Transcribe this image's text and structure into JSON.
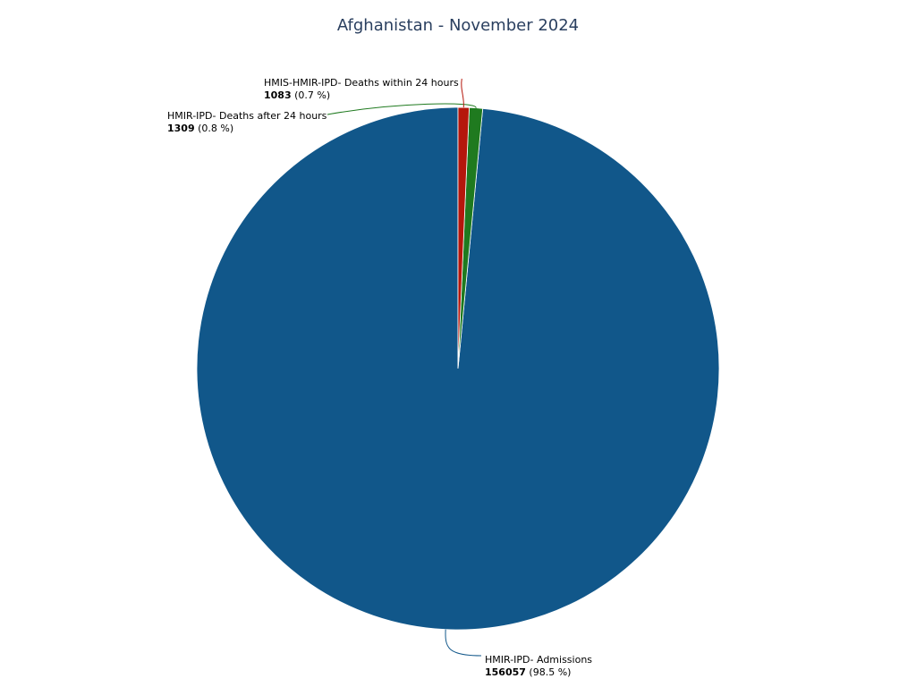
{
  "chart_data": {
    "type": "pie",
    "title": "Afghanistan - November 2024",
    "slices": [
      {
        "label": "HMIR-IPD- Admissions",
        "value": 156057,
        "percent_text": "(98.5 %)",
        "color": "#11578a"
      },
      {
        "label": "HMIR-IPD- Deaths after 24 hours",
        "value": 1309,
        "percent_text": "(0.8 %)",
        "color": "#1f7a1f"
      },
      {
        "label": "HMIS-HMIR-IPD- Deaths within 24 hours",
        "value": 1083,
        "percent_text": "(0.7 %)",
        "color": "#b5170c"
      }
    ],
    "direction": "counterclockwise",
    "start": "12 o'clock",
    "legend": "none"
  }
}
